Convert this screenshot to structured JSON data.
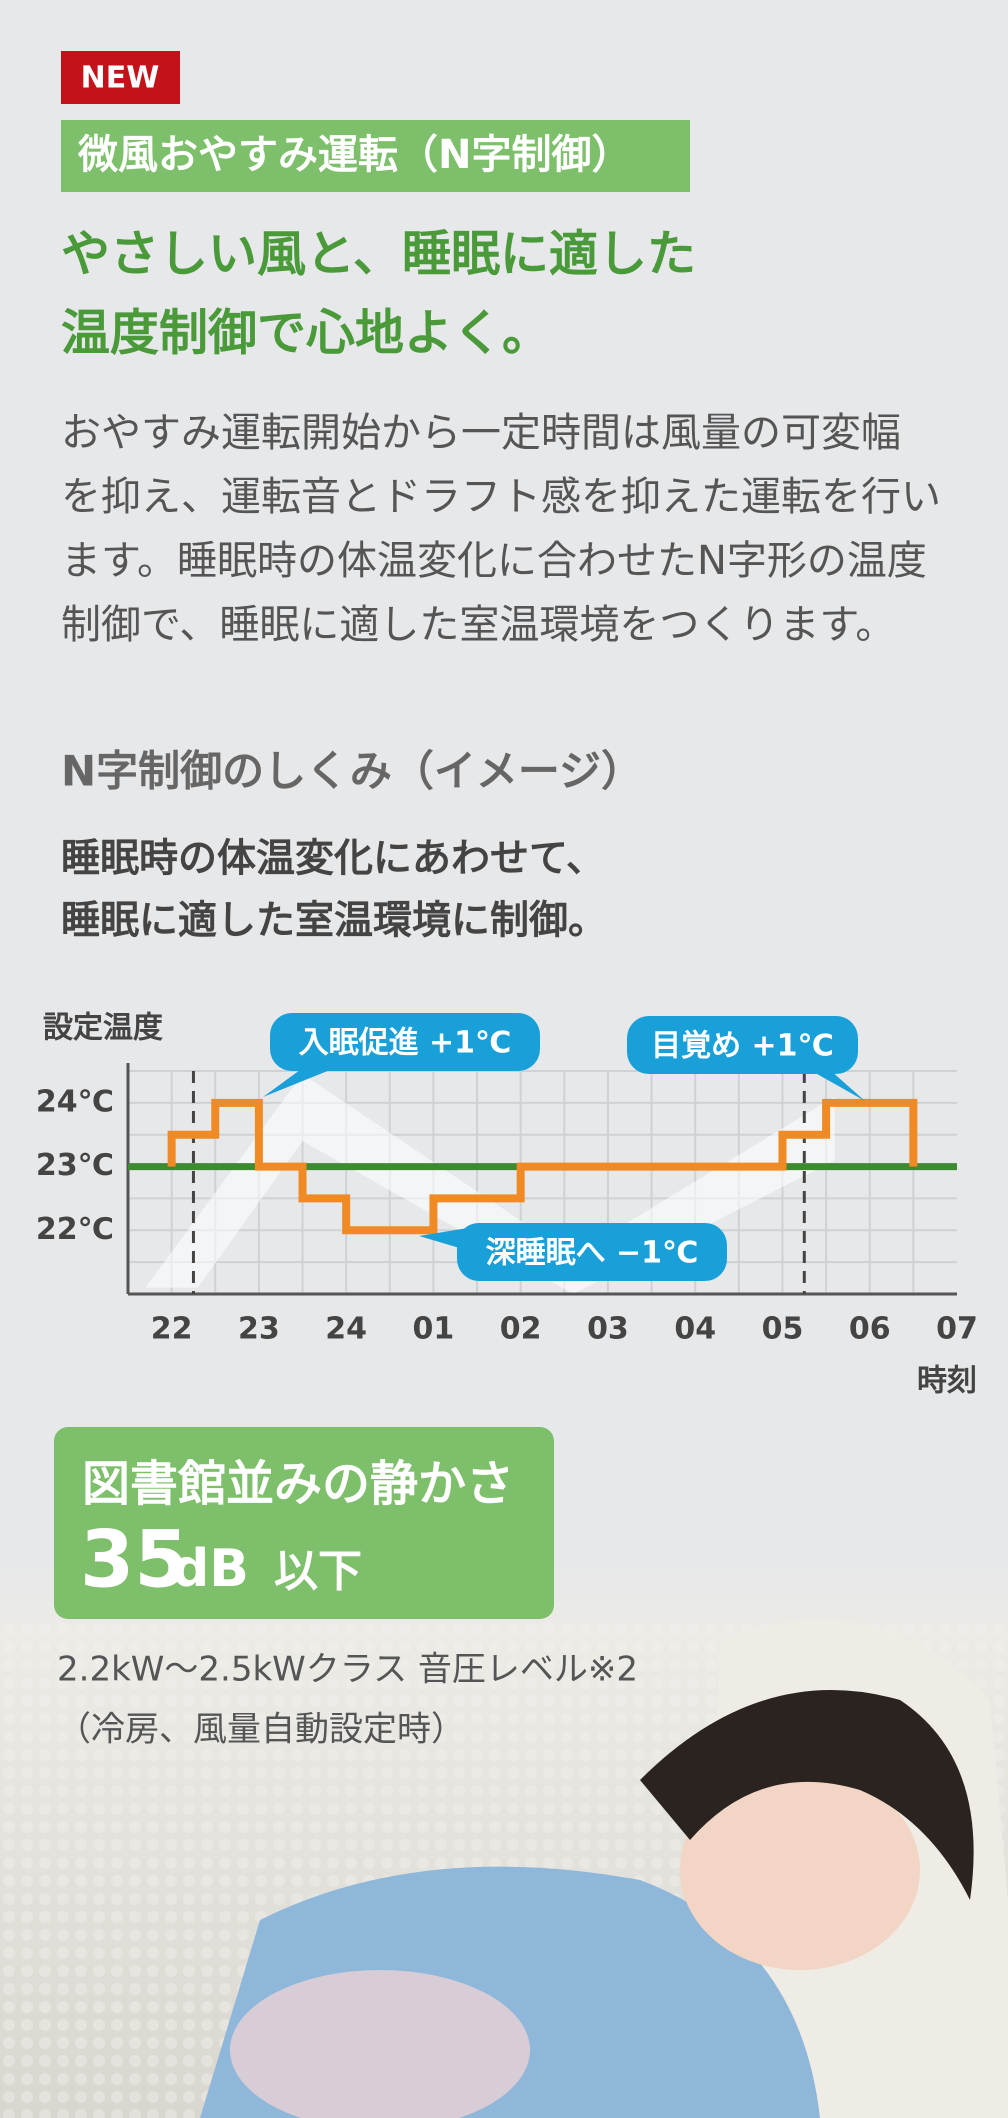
{
  "badge": "NEW",
  "label": "微風おやすみ運転（N字制御）",
  "headline": [
    "やさしい風と、睡眠に適した",
    "温度制御で心地よく。"
  ],
  "body": [
    "おやすみ運転開始から一定時間は風量の可変幅",
    "を抑え、運転音とドラフト感を抑えた運転を行い",
    "ます。睡眠時の体温変化に合わせたN字形の温度",
    "制御で、睡眠に適した室温環境をつくります。"
  ],
  "section_title": "N字制御のしくみ（イメージ）",
  "section_lead": [
    "睡眠時の体温変化にあわせて、",
    "睡眠に適した室温環境に制御。"
  ],
  "chart_data": {
    "type": "step-line",
    "y_label": "設定温度",
    "x_label": "時刻",
    "categories": [
      "22",
      "23",
      "24",
      "01",
      "02",
      "03",
      "04",
      "05",
      "06",
      "07"
    ],
    "xlim": [
      -0.5,
      9
    ],
    "ylim": [
      21,
      24.5
    ],
    "yticks": [
      {
        "value": 24,
        "label": "24℃"
      },
      {
        "value": 23,
        "label": "23℃"
      },
      {
        "value": 22,
        "label": "22℃"
      }
    ],
    "minor_yticks": [
      21.5,
      22.5,
      23.5,
      24.5
    ],
    "xgrid": [
      0,
      0.5,
      1,
      1.5,
      2,
      2.5,
      3,
      3.5,
      4,
      4.5,
      5,
      5.5,
      6,
      6.5,
      7,
      7.5,
      8,
      8.5
    ],
    "x": [
      0,
      0,
      0.5,
      0.5,
      1,
      1,
      1.5,
      1.5,
      2,
      2,
      3,
      3,
      4,
      4,
      7,
      7,
      7.5,
      7.5,
      8.5,
      8.5
    ],
    "values": [
      23,
      23.5,
      23.5,
      24,
      24,
      23,
      23,
      22.5,
      22.5,
      22,
      22,
      22.5,
      22.5,
      23,
      23,
      23.5,
      23.5,
      24,
      24,
      23
    ],
    "color": "#f08a24",
    "baseline": 23,
    "baseline_color": "#3d8a32",
    "markers": [
      0.25,
      7.25
    ],
    "annotations": [
      "入眠促進 +1℃",
      "深睡眠へ −1℃",
      "目覚め +1℃"
    ]
  },
  "quiet": {
    "title": "図書館並みの静かさ",
    "number": "35",
    "unit": "dB",
    "suffix": "以下"
  },
  "notes": [
    "2.2kW〜2.5kWクラス 音圧レベル※2",
    "（冷房、風量自動設定時）"
  ]
}
